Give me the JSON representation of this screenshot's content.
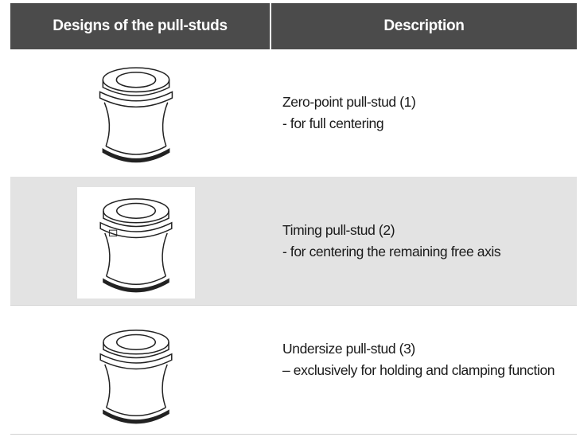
{
  "table": {
    "header": [
      "Designs of the pull-studs",
      "Description"
    ],
    "rows": [
      {
        "title": "Zero-point pull-stud (1)",
        "detail": "- for full centering"
      },
      {
        "title": "Timing pull-stud (2)",
        "detail": "- for centering the remaining free axis"
      },
      {
        "title": "Undersize pull-stud (3)",
        "detail": "– exclusively for holding and clamping function"
      }
    ]
  }
}
